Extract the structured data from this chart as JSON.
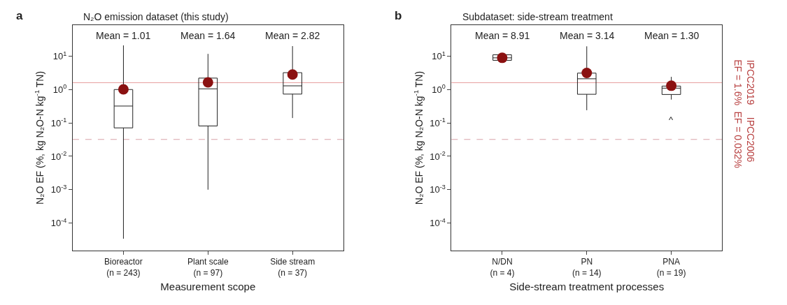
{
  "chart_data": [
    {
      "type": "box",
      "title": "N₂O emission dataset (this study)",
      "xlabel": "Measurement scope",
      "ylabel": "N₂O EF (%, kg N₂O-N kg$^{-1}$ TN)",
      "categories": [
        "Bioreactor\n(n = 243)",
        "Plant scale\n(n = 97)",
        "Side stream\n(n = 37)"
      ],
      "boxes": [
        {
          "low": 3.4e-05,
          "q1": 0.071,
          "median": 0.32,
          "q3": 1.0,
          "high": 21,
          "mean": 1.01
        },
        {
          "low": 0.001,
          "q1": 0.081,
          "median": 1.05,
          "q3": 2.2,
          "high": 11.7,
          "mean": 1.64
        },
        {
          "low": 0.14,
          "q1": 0.73,
          "median": 1.29,
          "q3": 3.2,
          "high": 20,
          "mean": 2.82
        }
      ],
      "log": true,
      "ylim": [
        1.5e-05,
        85
      ],
      "yticks": [
        {
          "value": 0.0001,
          "label": "10$^{-4}$"
        },
        {
          "value": 0.001,
          "label": "10$^{-3}$"
        },
        {
          "value": 0.01,
          "label": "10$^{-2}$"
        },
        {
          "value": 0.1,
          "label": "10$^{-1}$"
        },
        {
          "value": 1,
          "label": "10$^{0}$"
        },
        {
          "value": 10,
          "label": "10$^{1}$"
        }
      ],
      "ref_lines": [
        {
          "axis": "y",
          "value": 1.6,
          "color": "#e8a0a0",
          "line_style": "solid"
        },
        {
          "axis": "y",
          "value": 0.032,
          "color": "#d8a0a8",
          "line_style": "dashed"
        }
      ],
      "annotations": [
        "a",
        "Mean = 1.01",
        "Mean = 1.64",
        "Mean = 2.82"
      ]
    },
    {
      "type": "box",
      "title": "Subdataset: side-stream treatment",
      "xlabel": "Side-stream treatment processes",
      "ylabel": "N₂O EF (%, kg N₂O-N kg$^{-1}$ TN)",
      "categories": [
        "N/DN\n(n = 4)",
        "PN\n(n = 14)",
        "PNA\n(n = 19)"
      ],
      "boxes": [
        {
          "low": 7.5,
          "q1": 7.5,
          "median": 8.9,
          "q3": 11,
          "high": 11,
          "mean": 8.91
        },
        {
          "low": 0.24,
          "q1": 0.72,
          "median": 2.1,
          "q3": 3.1,
          "high": 19.7,
          "mean": 3.14
        },
        {
          "low": 0.5,
          "q1": 0.71,
          "median": 1.1,
          "q3": 1.27,
          "high": 2.4,
          "mean": 1.3
        }
      ],
      "log": true,
      "ylim": [
        1.5e-05,
        85
      ],
      "yticks": [
        {
          "value": 0.0001,
          "label": "10$^{-4}$"
        },
        {
          "value": 0.001,
          "label": "10$^{-3}$"
        },
        {
          "value": 0.01,
          "label": "10$^{-2}$"
        },
        {
          "value": 0.1,
          "label": "10$^{-1}$"
        },
        {
          "value": 1,
          "label": "10$^{0}$"
        },
        {
          "value": 10,
          "label": "10$^{1}$"
        }
      ],
      "ref_lines": [
        {
          "axis": "y",
          "value": 1.6,
          "color": "#e8a0a0",
          "line_style": "solid",
          "label": "IPCC2019\nEF = 1.6%"
        },
        {
          "axis": "y",
          "value": 0.032,
          "color": "#d8a0a8",
          "line_style": "dashed",
          "label": "IPCC2006\nEF = 0.032%"
        }
      ],
      "annotations": [
        "b",
        "Mean = 8.91",
        "Mean = 3.14",
        "Mean = 1.30",
        "^"
      ]
    }
  ]
}
